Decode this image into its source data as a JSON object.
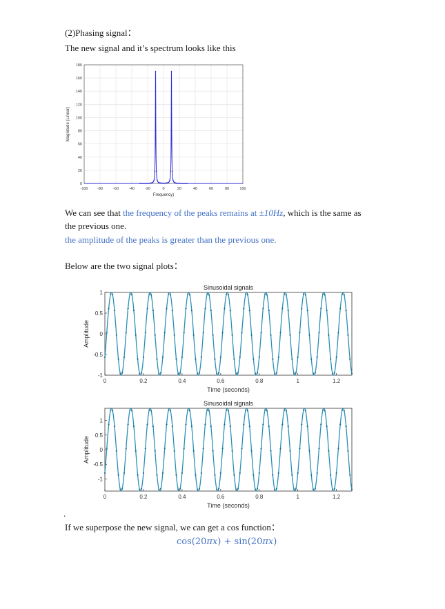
{
  "doc": {
    "heading": "(2)Phasing signal：",
    "intro": "The new signal and it’s spectrum looks like this",
    "para1_a": "We can see that ",
    "para1_b": "the frequency of the peaks remains at ",
    "para1_c": "±10Hz",
    "para1_d": ", which is the same as",
    "para1_e": "the previous one.",
    "para2": "the amplitude of the peaks is greater than the previous one.",
    "below": "Below are the two signal plots：",
    "bullet": ".",
    "superpose": "If we superpose the new signal, we can get a cos function：",
    "formula_cos": "cos(20",
    "formula_pi1": "π",
    "formula_x1": "x",
    "formula_plus": ") + sin(20",
    "formula_pi2": "π",
    "formula_x2": "x",
    "formula_end": ")"
  },
  "chart_data": [
    {
      "type": "line",
      "xlabel": "Frequency)",
      "ylabel": "Magnitude (Linear)",
      "xlim": [
        -100,
        100
      ],
      "ylim": [
        0,
        180
      ],
      "xticks": [
        "-100",
        "-80",
        "-60",
        "-40",
        "-20",
        "0",
        "20",
        "40",
        "60",
        "80",
        "100"
      ],
      "yticks": [
        "0",
        "20",
        "40",
        "60",
        "80",
        "100",
        "120",
        "140",
        "160",
        "180"
      ],
      "grid": true,
      "color": "#2b2bd6",
      "peaks": [
        {
          "x": -10,
          "y": 170
        },
        {
          "x": 10,
          "y": 170
        }
      ]
    },
    {
      "type": "line",
      "title": "Sinusoidal signals",
      "xlabel": "Time (seconds)",
      "ylabel": "Amplitude",
      "xlim": [
        0,
        1.28
      ],
      "ylim": [
        -1,
        1
      ],
      "xticks": [
        "0",
        "0.2",
        "0.4",
        "0.6",
        "0.8",
        "1",
        "1.2"
      ],
      "yticks": [
        "-1",
        "-0.5",
        "0",
        "0.5",
        "1"
      ],
      "color": "#2a8fb5",
      "frequency_hz": 10
    },
    {
      "type": "line",
      "title": "Sinusoidal signals",
      "xlabel": "Time (seconds)",
      "ylabel": "Amplitude",
      "xlim": [
        0,
        1.28
      ],
      "ylim": [
        -1.414,
        1.414
      ],
      "xticks": [
        "0",
        "0.2",
        "0.4",
        "0.6",
        "0.8",
        "1",
        "1.2"
      ],
      "yticks": [
        "-1",
        "-0.5",
        "0",
        "0.5",
        "1"
      ],
      "color": "#2a8fb5",
      "frequency_hz": 10
    }
  ]
}
